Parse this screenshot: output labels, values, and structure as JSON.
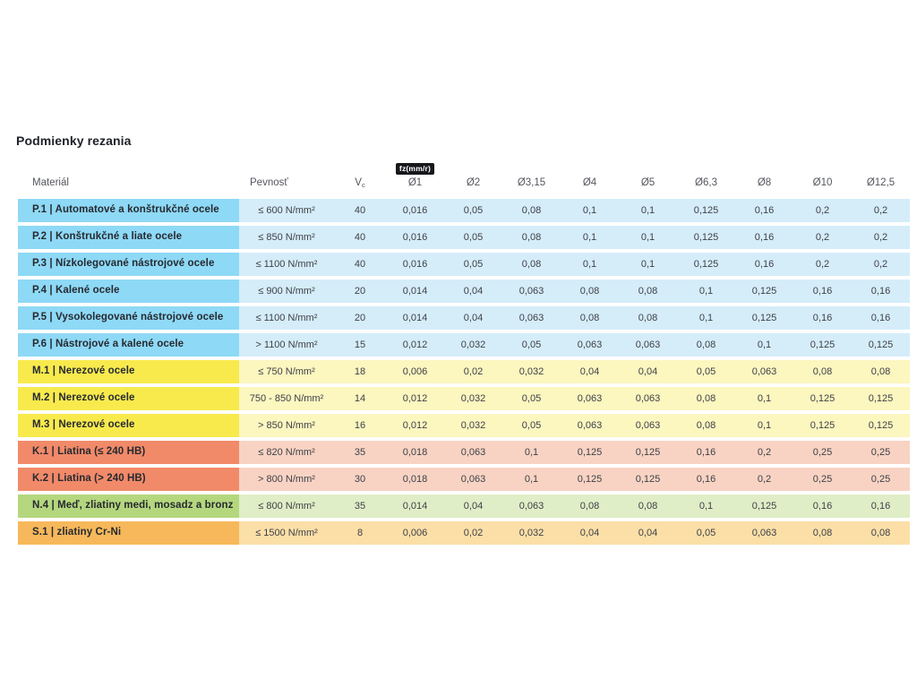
{
  "page": {
    "title": "Podmienky rezania"
  },
  "table": {
    "headers": {
      "material": "Materiál",
      "pevnost": "Pevnosť",
      "vc_main": "V",
      "vc_sub": "c",
      "fz_badge": "fz(mm/r)",
      "diameters": [
        "Ø1",
        "Ø2",
        "Ø3,15",
        "Ø4",
        "Ø5",
        "Ø6,3",
        "Ø8",
        "Ø10",
        "Ø12,5"
      ]
    },
    "group_colors": {
      "P": {
        "label": "#8ed9f6",
        "data": "#d5edf9"
      },
      "M": {
        "label": "#f8ea4d",
        "data": "#fcf6bf"
      },
      "K": {
        "label": "#f18a69",
        "data": "#f8d3c3"
      },
      "N": {
        "label": "#b4d77e",
        "data": "#dfeec6"
      },
      "S": {
        "label": "#f7b85b",
        "data": "#fbdfa7"
      }
    },
    "rows": [
      {
        "id": "P.1",
        "group": "P",
        "material": "P.1 | Automatové a konštrukčné ocele",
        "pevnost": "≤ 600 N/mm²",
        "vc": "40",
        "values": [
          "0,016",
          "0,05",
          "0,08",
          "0,1",
          "0,1",
          "0,125",
          "0,16",
          "0,2",
          "0,2"
        ]
      },
      {
        "id": "P.2",
        "group": "P",
        "material": "P.2 | Konštrukčné a liate ocele",
        "pevnost": "≤ 850 N/mm²",
        "vc": "40",
        "values": [
          "0,016",
          "0,05",
          "0,08",
          "0,1",
          "0,1",
          "0,125",
          "0,16",
          "0,2",
          "0,2"
        ]
      },
      {
        "id": "P.3",
        "group": "P",
        "material": "P.3 | Nízkolegované nástrojové ocele",
        "pevnost": "≤ 1100 N/mm²",
        "vc": "40",
        "values": [
          "0,016",
          "0,05",
          "0,08",
          "0,1",
          "0,1",
          "0,125",
          "0,16",
          "0,2",
          "0,2"
        ]
      },
      {
        "id": "P.4",
        "group": "P",
        "material": "P.4 | Kalené ocele",
        "pevnost": "≤ 900 N/mm²",
        "vc": "20",
        "values": [
          "0,014",
          "0,04",
          "0,063",
          "0,08",
          "0,08",
          "0,1",
          "0,125",
          "0,16",
          "0,16"
        ]
      },
      {
        "id": "P.5",
        "group": "P",
        "material": "P.5 | Vysokolegované nástrojové ocele",
        "pevnost": "≤ 1100 N/mm²",
        "vc": "20",
        "values": [
          "0,014",
          "0,04",
          "0,063",
          "0,08",
          "0,08",
          "0,1",
          "0,125",
          "0,16",
          "0,16"
        ]
      },
      {
        "id": "P.6",
        "group": "P",
        "material": "P.6 | Nástrojové a kalené ocele",
        "pevnost": "> 1100 N/mm²",
        "vc": "15",
        "values": [
          "0,012",
          "0,032",
          "0,05",
          "0,063",
          "0,063",
          "0,08",
          "0,1",
          "0,125",
          "0,125"
        ]
      },
      {
        "id": "M.1",
        "group": "M",
        "material": "M.1 | Nerezové ocele",
        "pevnost": "≤ 750 N/mm²",
        "vc": "18",
        "values": [
          "0,006",
          "0,02",
          "0,032",
          "0,04",
          "0,04",
          "0,05",
          "0,063",
          "0,08",
          "0,08"
        ]
      },
      {
        "id": "M.2",
        "group": "M",
        "material": "M.2 | Nerezové ocele",
        "pevnost": "750 - 850 N/mm²",
        "vc": "14",
        "values": [
          "0,012",
          "0,032",
          "0,05",
          "0,063",
          "0,063",
          "0,08",
          "0,1",
          "0,125",
          "0,125"
        ]
      },
      {
        "id": "M.3",
        "group": "M",
        "material": "M.3 | Nerezové ocele",
        "pevnost": "> 850 N/mm²",
        "vc": "16",
        "values": [
          "0,012",
          "0,032",
          "0,05",
          "0,063",
          "0,063",
          "0,08",
          "0,1",
          "0,125",
          "0,125"
        ]
      },
      {
        "id": "K.1",
        "group": "K",
        "material": "K.1 | Liatina (≤ 240 HB)",
        "pevnost": "≤ 820 N/mm²",
        "vc": "35",
        "values": [
          "0,018",
          "0,063",
          "0,1",
          "0,125",
          "0,125",
          "0,16",
          "0,2",
          "0,25",
          "0,25"
        ]
      },
      {
        "id": "K.2",
        "group": "K",
        "material": "K.2 | Liatina (> 240 HB)",
        "pevnost": "> 800 N/mm²",
        "vc": "30",
        "values": [
          "0,018",
          "0,063",
          "0,1",
          "0,125",
          "0,125",
          "0,16",
          "0,2",
          "0,25",
          "0,25"
        ]
      },
      {
        "id": "N.4",
        "group": "N",
        "material": "N.4 | Meď, zliatiny medi, mosadz a bronz",
        "pevnost": "≤ 800 N/mm²",
        "vc": "35",
        "values": [
          "0,014",
          "0,04",
          "0,063",
          "0,08",
          "0,08",
          "0,1",
          "0,125",
          "0,16",
          "0,16"
        ]
      },
      {
        "id": "S.1",
        "group": "S",
        "material": "S.1 | zliatiny Cr-Ni",
        "pevnost": "≤ 1500 N/mm²",
        "vc": "8",
        "values": [
          "0,006",
          "0,02",
          "0,032",
          "0,04",
          "0,04",
          "0,05",
          "0,063",
          "0,08",
          "0,08"
        ]
      }
    ]
  }
}
